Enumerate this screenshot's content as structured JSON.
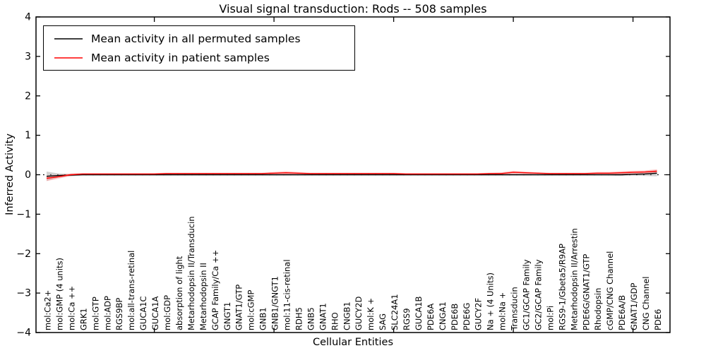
{
  "title": "Visual signal transduction: Rods -- 508 samples",
  "chart_data": {
    "type": "line",
    "title": "Visual signal transduction: Rods -- 508 samples",
    "xlabel": "Cellular Entities",
    "ylabel": "Inferred Activity",
    "ylim": [
      -4,
      4
    ],
    "yticks": [
      4,
      3,
      2,
      1,
      0,
      -1,
      -2,
      -3,
      -4
    ],
    "grid": false,
    "zero_line": true,
    "legend_position": "upper left",
    "major_xtick_indices": [
      9,
      19,
      29,
      39,
      49
    ],
    "categories": [
      "mol:Ca2+",
      "mol:GMP (4 units)",
      "mol:Ca ++",
      "GRK1",
      "mol:GTP",
      "mol:ADP",
      "RGS9BP",
      "mol:all-trans-retinal",
      "GUCA1C",
      "GUCA1A",
      "mol:GDP",
      "absorption of light",
      "Metarhodopsin II/Transducin",
      "Metarhodopsin II",
      "GCAP Family/Ca ++",
      "GNGT1",
      "GNAT1/GTP",
      "mol:cGMP",
      "GNB1",
      "GNB1/GNGT1",
      "mol:11-cis-retinal",
      "RDH5",
      "GNB5",
      "GNAT1",
      "RHO",
      "CNGB1",
      "GUCY2D",
      "mol:K +",
      "SAG",
      "SLC24A1",
      "RGS9",
      "GUCA1B",
      "PDE6A",
      "CNGA1",
      "PDE6B",
      "PDE6G",
      "GUCY2F",
      "Na + (4 Units)",
      "mol:Na +",
      "Transducin",
      "GC1/GCAP Family",
      "GC2/GCAP Family",
      "mol:Pi",
      "RGS9-1/Gbeta5/R9AP",
      "Metarhodopsin II/Arrestin",
      "PDE6G/GNAT1/GTP",
      "Rhodopsin",
      "cGMP/CNG Channel",
      "PDE6A/B",
      "GNAT1/GDP",
      "CNG Channel",
      "PDE6"
    ],
    "series": [
      {
        "id": "permuted",
        "name": "Mean activity in all permuted samples",
        "color": "#000000",
        "band_color": "#999999",
        "values": [
          -0.04,
          -0.02,
          -0.01,
          0,
          0,
          0,
          0,
          0,
          0,
          0,
          0,
          0,
          0,
          0,
          0,
          0,
          0,
          0,
          0,
          0,
          0,
          0,
          0,
          0,
          0,
          0,
          0,
          0,
          0,
          0,
          0,
          0,
          0,
          0,
          0,
          0,
          0,
          0,
          0,
          0,
          0,
          0,
          0,
          0,
          0,
          0,
          0,
          0,
          0,
          0.01,
          0.02,
          0.04
        ],
        "band": [
          0.12,
          0.05,
          0.03,
          0.02,
          0.02,
          0.02,
          0.02,
          0.02,
          0.02,
          0.02,
          0.02,
          0.02,
          0.02,
          0.02,
          0.02,
          0.02,
          0.02,
          0.02,
          0.02,
          0.02,
          0.02,
          0.02,
          0.02,
          0.02,
          0.02,
          0.02,
          0.02,
          0.02,
          0.02,
          0.02,
          0.02,
          0.02,
          0.02,
          0.02,
          0.02,
          0.02,
          0.02,
          0.02,
          0.02,
          0.02,
          0.02,
          0.02,
          0.02,
          0.02,
          0.02,
          0.02,
          0.02,
          0.02,
          0.03,
          0.03,
          0.05,
          0.08
        ]
      },
      {
        "id": "patient",
        "name": "Mean activity in patient samples",
        "color": "#ff0000",
        "band_color": "#ff8888",
        "values": [
          -0.09,
          -0.05,
          0,
          0.02,
          0.02,
          0.02,
          0.02,
          0.02,
          0.02,
          0.02,
          0.03,
          0.03,
          0.03,
          0.03,
          0.03,
          0.03,
          0.03,
          0.03,
          0.03,
          0.04,
          0.05,
          0.04,
          0.03,
          0.03,
          0.03,
          0.03,
          0.03,
          0.03,
          0.03,
          0.03,
          0.02,
          0.02,
          0.02,
          0.02,
          0.02,
          0.02,
          0.02,
          0.03,
          0.03,
          0.06,
          0.05,
          0.04,
          0.03,
          0.03,
          0.03,
          0.03,
          0.04,
          0.04,
          0.05,
          0.06,
          0.07,
          0.09
        ],
        "band": [
          0.07,
          0.05,
          0.03,
          0.02,
          0.02,
          0.02,
          0.02,
          0.02,
          0.02,
          0.02,
          0.02,
          0.02,
          0.02,
          0.02,
          0.02,
          0.02,
          0.02,
          0.02,
          0.02,
          0.03,
          0.04,
          0.03,
          0.02,
          0.02,
          0.02,
          0.02,
          0.02,
          0.02,
          0.02,
          0.02,
          0.02,
          0.02,
          0.02,
          0.02,
          0.02,
          0.02,
          0.02,
          0.02,
          0.03,
          0.04,
          0.03,
          0.02,
          0.02,
          0.02,
          0.02,
          0.02,
          0.03,
          0.03,
          0.04,
          0.04,
          0.04,
          0.05
        ]
      }
    ],
    "colors": {
      "frame": "#000000",
      "zero_line": "#000000",
      "background": "#ffffff"
    }
  }
}
